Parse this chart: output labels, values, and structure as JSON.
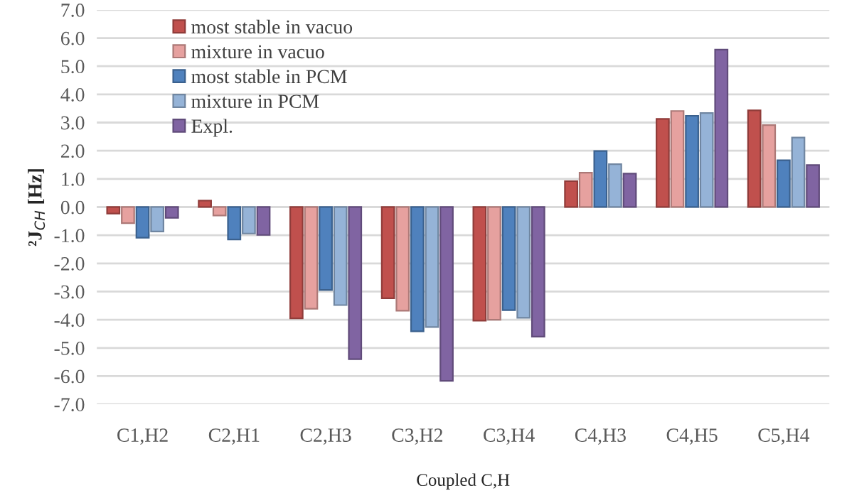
{
  "chart_data": {
    "type": "bar",
    "ylabel": "²J$_{CH}$ [Hz]",
    "xlabel": "Coupled C,H",
    "categories": [
      "C1,H2",
      "C2,H1",
      "C2,H3",
      "C3,H2",
      "C3,H4",
      "C4,H3",
      "C4,H5",
      "C5,H4"
    ],
    "series": [
      {
        "name": "most stable in vacuo",
        "color": "#c0504d",
        "values": [
          -0.23,
          0.23,
          -3.95,
          -3.24,
          -4.03,
          0.92,
          3.13,
          3.43
        ]
      },
      {
        "name": "mixture in vacuo",
        "color": "#e6a19f",
        "values": [
          -0.57,
          -0.3,
          -3.61,
          -3.68,
          -4.0,
          1.22,
          3.41,
          2.91
        ]
      },
      {
        "name": "most stable in PCM",
        "color": "#4f81bd",
        "values": [
          -1.09,
          -1.15,
          -2.94,
          -4.41,
          -3.66,
          1.99,
          3.24,
          1.66
        ]
      },
      {
        "name": "mixture in PCM",
        "color": "#95b3d7",
        "values": [
          -0.87,
          -0.94,
          -3.48,
          -4.26,
          -3.93,
          1.52,
          3.34,
          2.47
        ]
      },
      {
        "name": "Expl.",
        "color": "#8064a2",
        "values": [
          -0.38,
          -0.99,
          -5.4,
          -6.17,
          -4.6,
          1.19,
          5.59,
          1.49
        ]
      }
    ],
    "ylim": [
      -7,
      7
    ],
    "yticks": [
      {
        "value": -7,
        "label": "-7.0"
      },
      {
        "value": -6,
        "label": "-6.0"
      },
      {
        "value": -5,
        "label": "-5.0"
      },
      {
        "value": -4,
        "label": "-4.0"
      },
      {
        "value": -3,
        "label": "-3.0"
      },
      {
        "value": -2,
        "label": "-2.0"
      },
      {
        "value": -1,
        "label": "-1.0"
      },
      {
        "value": 0,
        "label": "0.0"
      },
      {
        "value": 1,
        "label": "1.0"
      },
      {
        "value": 2,
        "label": "2.0"
      },
      {
        "value": 3,
        "label": "3.0"
      },
      {
        "value": 4,
        "label": "4.0"
      },
      {
        "value": 5,
        "label": "5.0"
      },
      {
        "value": 6,
        "label": "6.0"
      },
      {
        "value": 7,
        "label": "7.0"
      }
    ],
    "grid": "y",
    "legend": "top left"
  }
}
